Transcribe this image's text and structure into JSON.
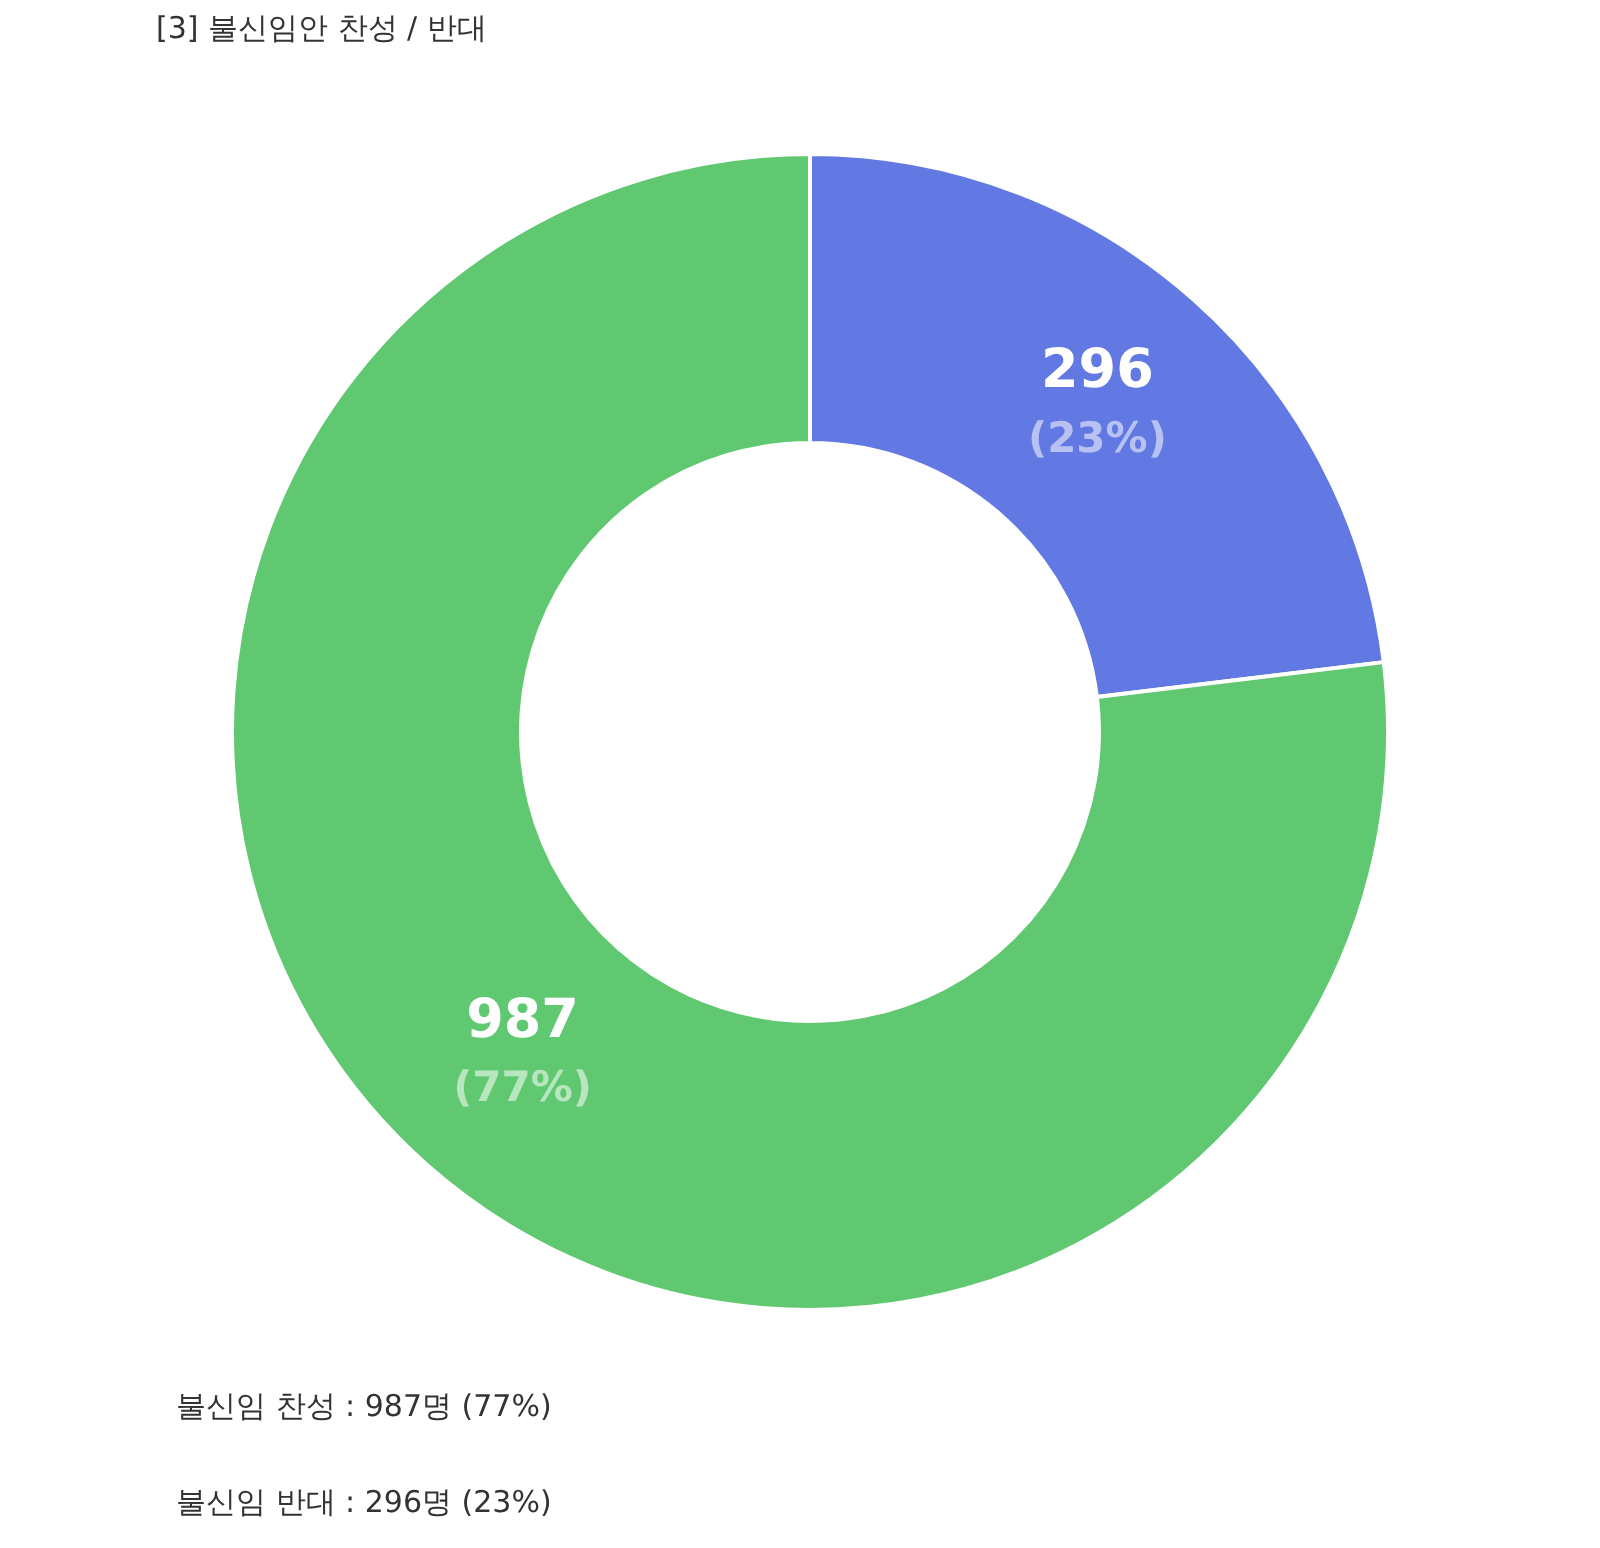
{
  "chart_data": {
    "type": "donut",
    "title": "[3] 불신임안 찬성 / 반대",
    "categories": [
      null,
      null
    ],
    "values": [
      296,
      987
    ],
    "colors": [
      "#6279e3",
      "#5fc871"
    ],
    "value_labels": [
      "296\n(23%)",
      "987\n(77%)"
    ],
    "legend": false,
    "annotations": [
      "불신임 찬성 : 987명 (77%)",
      "불신임 반대 : 296명 (23%)"
    ]
  }
}
